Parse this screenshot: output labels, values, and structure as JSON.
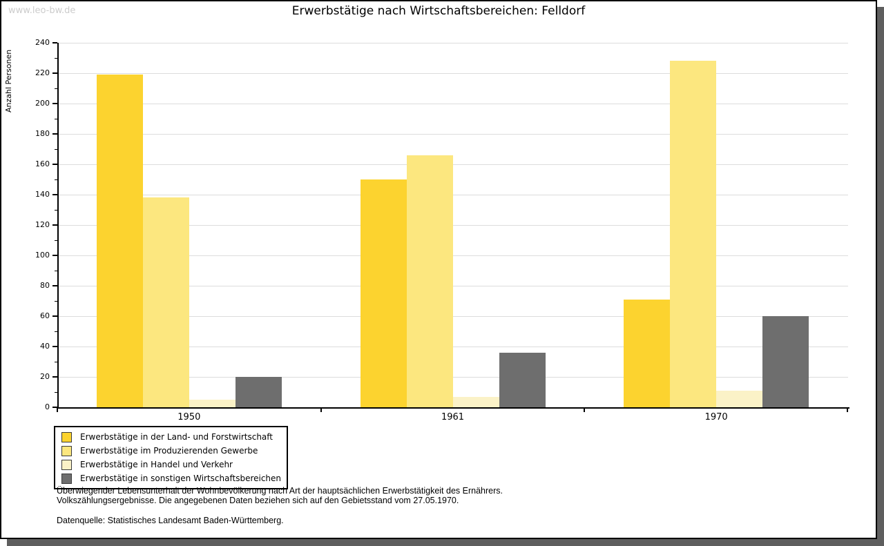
{
  "watermark": "www.leo-bw.de",
  "chart_data": {
    "type": "bar",
    "title": "Erwerbstätige nach Wirtschaftsbereichen: Felldorf",
    "ylabel": "Anzahl Personen",
    "xlabel": "",
    "categories": [
      "1950",
      "1961",
      "1970"
    ],
    "series": [
      {
        "name": "Erwerbstätige in der Land- und Forstwirtschaft",
        "color": "#fcd32f",
        "values": [
          219,
          150,
          71
        ]
      },
      {
        "name": "Erwerbstätige im Produzierenden Gewerbe",
        "color": "#fce77f",
        "values": [
          138,
          166,
          228
        ]
      },
      {
        "name": "Erwerbstätige in Handel und Verkehr",
        "color": "#fbf2c7",
        "values": [
          5,
          7,
          11
        ]
      },
      {
        "name": "Erwerbstätige in sonstigen Wirtschaftsbereichen",
        "color": "#6e6e6e",
        "values": [
          20,
          36,
          60
        ]
      }
    ],
    "ylim": [
      0,
      240
    ],
    "ytick_step": 20,
    "y_minor_tick_step": 10,
    "grid": true,
    "legend_position": "bottom-left",
    "gridline_color": "#dcdcdc",
    "axis_color": "#000000"
  },
  "footer": {
    "line1": "Überwiegender Lebensunterhalt der Wohnbevölkerung nach Art der hauptsächlichen Erwerbstätigkeit des Ernährers.",
    "line2": "Volkszählungsergebnisse. Die angegebenen Daten beziehen sich auf den Gebietsstand vom 27.05.1970.",
    "source": "Datenquelle: Statistisches Landesamt Baden-Württemberg."
  }
}
